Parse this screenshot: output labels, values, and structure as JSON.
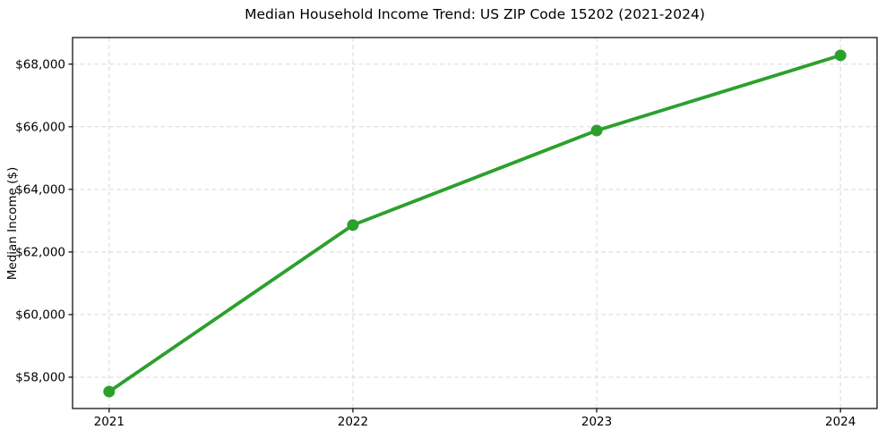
{
  "page": {
    "background": "#ffffff"
  },
  "chart_data": {
    "type": "line",
    "title": "Median Household Income Trend: US ZIP Code 15202 (2021-2024)",
    "xlabel": "",
    "ylabel": "Median Income ($)",
    "x": [
      2021,
      2022,
      2023,
      2024
    ],
    "x_tick_labels": [
      "2021",
      "2022",
      "2023",
      "2024"
    ],
    "values": [
      57540,
      62860,
      65880,
      68280
    ],
    "y_ticks": [
      58000,
      60000,
      62000,
      64000,
      66000,
      68000
    ],
    "y_tick_labels": [
      "$58,000",
      "$60,000",
      "$62,000",
      "$64,000",
      "$66,000",
      "$68,000"
    ],
    "xlim": [
      2020.85,
      2024.15
    ],
    "ylim": [
      57000,
      68850
    ],
    "grid": true,
    "grid_style": "dashed",
    "grid_color": "#d8d8d8",
    "axis_color": "#000000",
    "line_color": "#2ca02c",
    "marker": "circle",
    "marker_radius": 6.5,
    "line_width": 3.8,
    "legend": "none"
  }
}
